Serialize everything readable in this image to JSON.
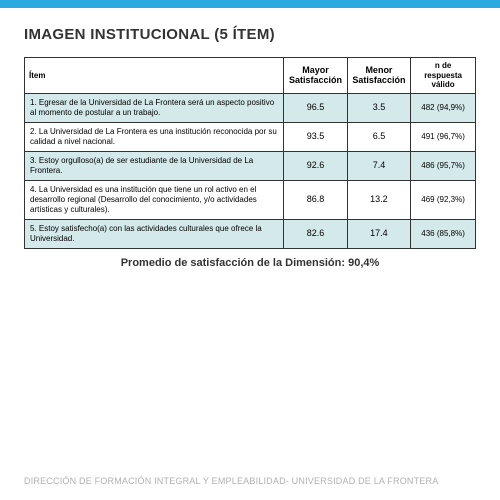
{
  "title": "IMAGEN INSTITUCIONAL (5 ÍTEM)",
  "table": {
    "headers": {
      "item": "Ítem",
      "mayor": "Mayor Satisfacción",
      "menor": "Menor Satisfacción",
      "valido": "n de respuesta válido"
    },
    "rows": [
      {
        "item": "1. Egresar de la Universidad de La Frontera será un aspecto positivo al momento de postular a un trabajo.",
        "mayor": "96.5",
        "menor": "3.5",
        "valido": "482 (94,9%)",
        "shaded": true
      },
      {
        "item": "2. La Universidad de La Frontera es una institución reconocida por su calidad a nivel nacional.",
        "mayor": "93.5",
        "menor": "6.5",
        "valido": "491 (96,7%)",
        "shaded": false
      },
      {
        "item": "3. Estoy orgulloso(a) de ser estudiante de la Universidad de La Frontera.",
        "mayor": "92.6",
        "menor": "7.4",
        "valido": "486 (95,7%)",
        "shaded": true
      },
      {
        "item": "4. La Universidad es una institución que tiene un rol activo en el desarrollo regional (Desarrollo del conocimiento, y/o actividades artísticas y culturales).",
        "mayor": "86.8",
        "menor": "13.2",
        "valido": "469 (92,3%)",
        "shaded": false
      },
      {
        "item": "5. Estoy satisfecho(a) con las actividades culturales que ofrece la Universidad.",
        "mayor": "82.6",
        "menor": "17.4",
        "valido": "436 (85,8%)",
        "shaded": true
      }
    ]
  },
  "summary": "Promedio de satisfacción de la Dimensión: 90,4%",
  "footer": "DIRECCIÓN DE FORMACIÓN INTEGRAL Y EMPLEABILIDAD- UNIVERSIDAD DE LA FRONTERA"
}
